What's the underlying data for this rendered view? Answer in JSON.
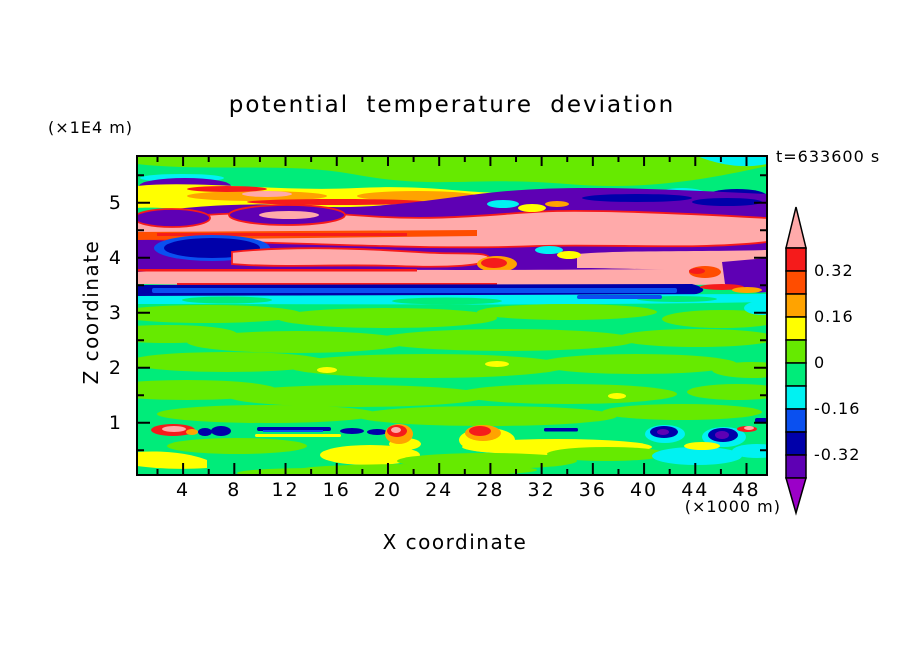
{
  "title": "potential temperature deviation",
  "labels": {
    "z_unit": "(×1E4 m)",
    "x_unit": "(×1000 m)",
    "time": "t=633600 s"
  },
  "x_axis": {
    "label": "X coordinate",
    "major_ticks": [
      4,
      8,
      12,
      16,
      20,
      24,
      28,
      32,
      36,
      40,
      44,
      48
    ],
    "minor_ticks": [
      2,
      6,
      10,
      14,
      18,
      22,
      26,
      30,
      34,
      38,
      42,
      46,
      50
    ],
    "range": [
      0.4,
      49.6
    ],
    "unit": "×1000 m"
  },
  "z_axis": {
    "label": "Z coordinate",
    "major_ticks": [
      5,
      4,
      3,
      2,
      1
    ],
    "minor_ticks": [
      5.5,
      4.5,
      3.5,
      2.5,
      1.5,
      0.5
    ],
    "range": [
      0.05,
      5.85
    ],
    "unit": "×1E4 m"
  },
  "colorbar": {
    "cells": [
      {
        "color_key": "pink",
        "hex": "#FFAAAA",
        "range": "> 0.40",
        "arrow": "up"
      },
      {
        "color_key": "red",
        "hex": "#F51B1B",
        "range": "0.32 to 0.40"
      },
      {
        "color_key": "orangered",
        "hex": "#FF4D00",
        "range": "0.24 to 0.32"
      },
      {
        "color_key": "orange",
        "hex": "#FFA300",
        "range": "0.16 to 0.24"
      },
      {
        "color_key": "yellow",
        "hex": "#FFFF00",
        "range": "0.08 to 0.16"
      },
      {
        "color_key": "chartreuse",
        "hex": "#66EA00",
        "range": "0 to 0.08"
      },
      {
        "color_key": "springgreen",
        "hex": "#00EC7A",
        "range": "-0.08 to 0"
      },
      {
        "color_key": "cyan",
        "hex": "#00F2F2",
        "range": "-0.16 to -0.08"
      },
      {
        "color_key": "blue",
        "hex": "#0A50F0",
        "range": "-0.24 to -0.16"
      },
      {
        "color_key": "navy",
        "hex": "#0000AA",
        "range": "-0.32 to -0.24"
      },
      {
        "color_key": "purple",
        "hex": "#5E00B4",
        "range": "-0.40 to -0.32"
      },
      {
        "color_key": "magenta",
        "hex": "#9B00C8",
        "range": "< -0.40",
        "arrow": "down"
      }
    ],
    "tick_labels": [
      {
        "text": "0.32",
        "boundary": 1
      },
      {
        "text": "0.16",
        "boundary": 3
      },
      {
        "text": "0",
        "boundary": 5
      },
      {
        "text": "-0.16",
        "boundary": 7
      },
      {
        "text": "-0.32",
        "boundary": 9
      }
    ]
  },
  "chart_data": {
    "type": "heatmap",
    "title": "potential temperature deviation",
    "xlabel": "X coordinate",
    "ylabel": "Z coordinate",
    "x_range_x1000m": [
      0.4,
      49.6
    ],
    "z_range_x1e4m": [
      0.05,
      5.85
    ],
    "time_annotation": "t=633600 s",
    "contour_interval": 0.08,
    "levels": [
      -0.4,
      -0.32,
      -0.24,
      -0.16,
      -0.08,
      0,
      0.08,
      0.16,
      0.24,
      0.32,
      0.4
    ],
    "legend_position": "right colorbar with over/under arrows",
    "grid": false,
    "structure_summary": [
      {
        "z_x1e4m": "5.6-5.85",
        "pattern": "near-zero values, -0.08 to +0.08 (spring green with chartreuse cap); small cyan/blue/navy pockets near x=42-50"
      },
      {
        "z_x1e4m": "4.1-5.6",
        "pattern": "strong gravity-wave layer: horizontal streaks alternating between > +0.40 (pink), +0.32-0.40 (red/orange/yellow fringes) and < -0.40 (purple) with navy patches"
      },
      {
        "z_x1e4m": "3.75-4.1",
        "pattern": "pink positive band over a sharp negative stripe -0.24 to -0.40 (navy/blue) then -0.08 to -0.16 (cyan) spanning the full width"
      },
      {
        "z_x1e4m": "0.95-3.75",
        "pattern": "quiescent near-zero field, mottled -0.08 to +0.08 (two green shades) with tiny yellow spots"
      },
      {
        "z_x1e4m": "0.70-0.95",
        "pattern": "thin perturbation line: localized extrema - pink/red maxima near x=2.5, 20, 26, navy/purple minima near x=5-7, 32, 40-47, yellow fringes below"
      },
      {
        "z_x1e4m": "0.05-0.70",
        "pattern": "weak field -0.16 to +0.16: green background, yellow patches near x=0-4, 14-22, 24-31, 43, cyan patches near x=38-49"
      }
    ]
  }
}
